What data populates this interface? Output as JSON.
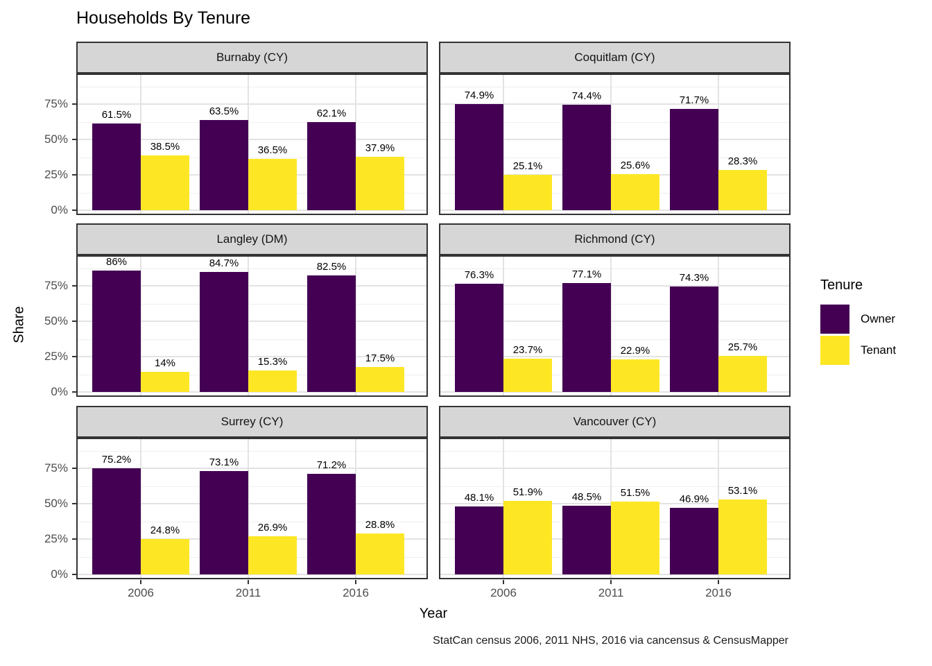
{
  "title": "Households By Tenure",
  "caption": "StatCan census 2006, 2011 NHS, 2016 via cancensus & CensusMapper",
  "axes": {
    "x_label": "Year",
    "y_label": "Share",
    "x_ticks": [
      "2006",
      "2011",
      "2016"
    ],
    "y_tick_labels": [
      "0%",
      "25%",
      "50%",
      "75%"
    ]
  },
  "legend": {
    "title": "Tenure",
    "items": [
      {
        "label": "Owner",
        "color": "#440154"
      },
      {
        "label": "Tenant",
        "color": "#FDE725"
      }
    ]
  },
  "style": {
    "background": "#FFFFFF",
    "strip_fill": "#D6D6D6",
    "panel_border": "#333333",
    "grid_major": "#E3E3E3",
    "grid_minor": "#EFEFEF",
    "axis_text": "#4D4D4D"
  },
  "chart_data": {
    "type": "bar",
    "title": "Households By Tenure",
    "xlabel": "Year",
    "ylabel": "Share",
    "categories": [
      "2006",
      "2011",
      "2016"
    ],
    "ylim": [
      0,
      95
    ],
    "y_major_ticks": [
      0,
      25,
      50,
      75
    ],
    "grid": true,
    "legend_position": "right",
    "series_names": [
      "Owner",
      "Tenant"
    ],
    "facets": [
      {
        "name": "Burnaby (CY)",
        "series": [
          {
            "name": "Owner",
            "values": [
              61.5,
              63.5,
              62.1
            ],
            "labels": [
              "61.5%",
              "63.5%",
              "62.1%"
            ]
          },
          {
            "name": "Tenant",
            "values": [
              38.5,
              36.5,
              37.9
            ],
            "labels": [
              "38.5%",
              "36.5%",
              "37.9%"
            ]
          }
        ]
      },
      {
        "name": "Coquitlam (CY)",
        "series": [
          {
            "name": "Owner",
            "values": [
              74.9,
              74.4,
              71.7
            ],
            "labels": [
              "74.9%",
              "74.4%",
              "71.7%"
            ]
          },
          {
            "name": "Tenant",
            "values": [
              25.1,
              25.6,
              28.3
            ],
            "labels": [
              "25.1%",
              "25.6%",
              "28.3%"
            ]
          }
        ]
      },
      {
        "name": "Langley (DM)",
        "series": [
          {
            "name": "Owner",
            "values": [
              86,
              84.7,
              82.5
            ],
            "labels": [
              "86%",
              "84.7%",
              "82.5%"
            ]
          },
          {
            "name": "Tenant",
            "values": [
              14,
              15.3,
              17.5
            ],
            "labels": [
              "14%",
              "15.3%",
              "17.5%"
            ]
          }
        ]
      },
      {
        "name": "Richmond (CY)",
        "series": [
          {
            "name": "Owner",
            "values": [
              76.3,
              77.1,
              74.3
            ],
            "labels": [
              "76.3%",
              "77.1%",
              "74.3%"
            ]
          },
          {
            "name": "Tenant",
            "values": [
              23.7,
              22.9,
              25.7
            ],
            "labels": [
              "23.7%",
              "22.9%",
              "25.7%"
            ]
          }
        ]
      },
      {
        "name": "Surrey (CY)",
        "series": [
          {
            "name": "Owner",
            "values": [
              75.2,
              73.1,
              71.2
            ],
            "labels": [
              "75.2%",
              "73.1%",
              "71.2%"
            ]
          },
          {
            "name": "Tenant",
            "values": [
              24.8,
              26.9,
              28.8
            ],
            "labels": [
              "24.8%",
              "26.9%",
              "28.8%"
            ]
          }
        ]
      },
      {
        "name": "Vancouver (CY)",
        "series": [
          {
            "name": "Owner",
            "values": [
              48.1,
              48.5,
              46.9
            ],
            "labels": [
              "48.1%",
              "48.5%",
              "46.9%"
            ]
          },
          {
            "name": "Tenant",
            "values": [
              51.9,
              51.5,
              53.1
            ],
            "labels": [
              "51.9%",
              "51.5%",
              "53.1%"
            ]
          }
        ]
      }
    ]
  }
}
